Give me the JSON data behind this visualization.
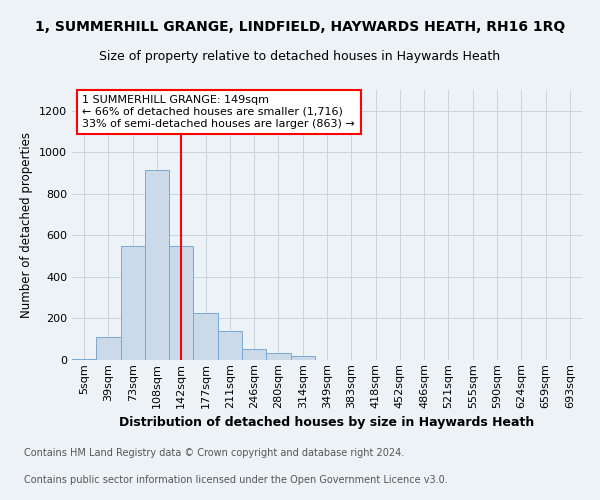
{
  "title1": "1, SUMMERHILL GRANGE, LINDFIELD, HAYWARDS HEATH, RH16 1RQ",
  "title2": "Size of property relative to detached houses in Haywards Heath",
  "xlabel": "Distribution of detached houses by size in Haywards Heath",
  "ylabel": "Number of detached properties",
  "bar_color": "#ccd9e8",
  "bar_edge_color": "#7aaace",
  "bins": [
    "5sqm",
    "39sqm",
    "73sqm",
    "108sqm",
    "142sqm",
    "177sqm",
    "211sqm",
    "246sqm",
    "280sqm",
    "314sqm",
    "349sqm",
    "383sqm",
    "418sqm",
    "452sqm",
    "486sqm",
    "521sqm",
    "555sqm",
    "590sqm",
    "624sqm",
    "659sqm",
    "693sqm"
  ],
  "values": [
    5,
    110,
    550,
    915,
    550,
    225,
    140,
    55,
    35,
    20,
    0,
    0,
    0,
    0,
    0,
    0,
    0,
    0,
    0,
    0,
    0
  ],
  "ylim": [
    0,
    1300
  ],
  "yticks": [
    0,
    200,
    400,
    600,
    800,
    1000,
    1200
  ],
  "vline_x": 4,
  "annotation_text": "1 SUMMERHILL GRANGE: 149sqm\n← 66% of detached houses are smaller (1,716)\n33% of semi-detached houses are larger (863) →",
  "annotation_box_color": "white",
  "annotation_box_edge_color": "red",
  "vline_color": "red",
  "footer1": "Contains HM Land Registry data © Crown copyright and database right 2024.",
  "footer2": "Contains public sector information licensed under the Open Government Licence v3.0.",
  "background_color": "#edf2f7",
  "grid_color": "#c8d4e0",
  "title1_fontsize": 10,
  "title2_fontsize": 9,
  "xlabel_fontsize": 9,
  "ylabel_fontsize": 8.5,
  "footer_fontsize": 7,
  "tick_fontsize": 8
}
